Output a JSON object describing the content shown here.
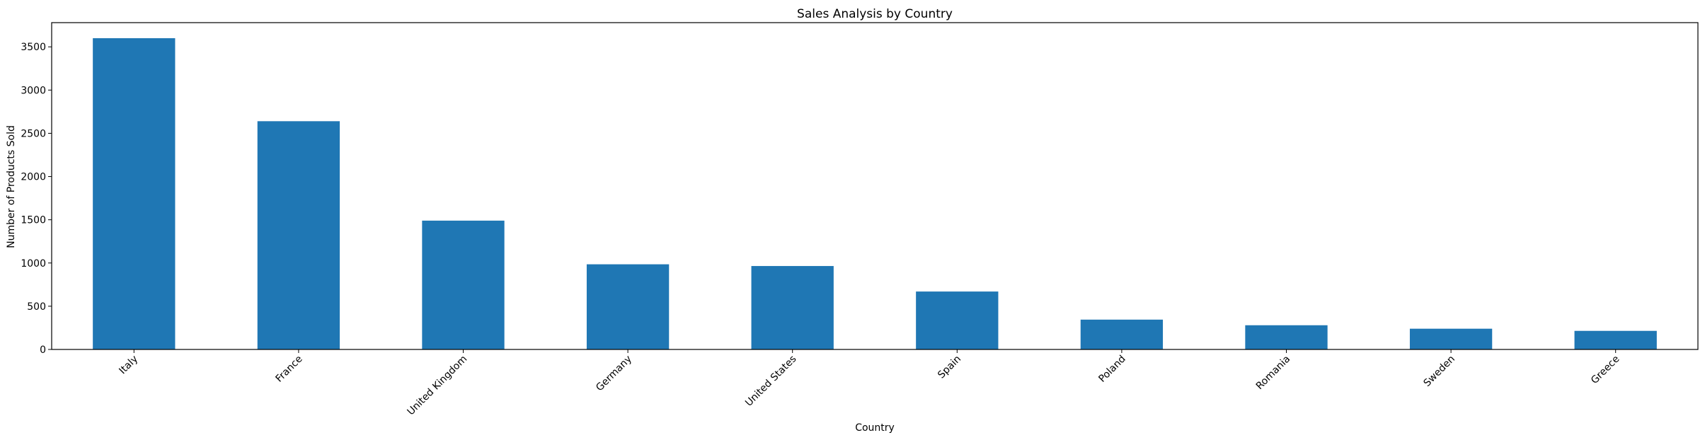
{
  "chart_data": {
    "type": "bar",
    "title": "Sales Analysis by Country",
    "xlabel": "Country",
    "ylabel": "Number of Products Sold",
    "categories": [
      "Italy",
      "France",
      "United Kingdom",
      "Germany",
      "United States",
      "Spain",
      "Poland",
      "Romania",
      "Sweden",
      "Greece"
    ],
    "values": [
      3600,
      2640,
      1490,
      985,
      965,
      670,
      345,
      280,
      240,
      215
    ],
    "ylim": [
      0,
      3780
    ],
    "yticks": [
      0,
      500,
      1000,
      1500,
      2000,
      2500,
      3000,
      3500
    ],
    "grid": false,
    "bar_color": "#1f77b4",
    "xtick_rotation": 45
  }
}
